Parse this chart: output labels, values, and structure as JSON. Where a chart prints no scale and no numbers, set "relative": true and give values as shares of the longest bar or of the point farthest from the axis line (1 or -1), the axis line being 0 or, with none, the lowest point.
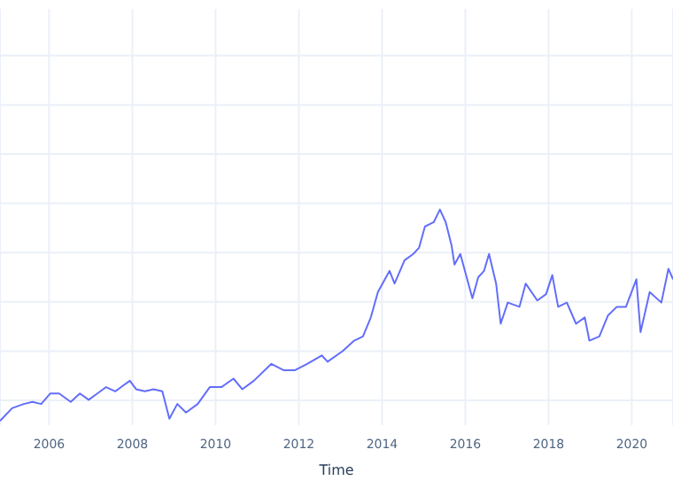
{
  "chart_data": {
    "type": "line",
    "xlabel": "Time",
    "relative": true,
    "grid": true,
    "xlim": [
      2004.82,
      2020.99
    ],
    "xticks": [
      2006,
      2008,
      2010,
      2012,
      2014,
      2016,
      2018,
      2020
    ],
    "tick_labels": "x",
    "marker": "none",
    "line_style": "solid",
    "series": [
      {
        "color": "#636efa",
        "x": [
          2004.82,
          2005.11,
          2005.39,
          2005.6,
          2005.81,
          2006.03,
          2006.24,
          2006.52,
          2006.74,
          2006.95,
          2007.16,
          2007.37,
          2007.59,
          2007.73,
          2007.94,
          2008.09,
          2008.3,
          2008.51,
          2008.72,
          2008.89,
          2009.08,
          2009.29,
          2009.57,
          2009.86,
          2010.14,
          2010.43,
          2010.64,
          2010.92,
          2011.34,
          2011.63,
          2011.91,
          2012.2,
          2012.55,
          2012.69,
          2013.05,
          2013.33,
          2013.54,
          2013.73,
          2013.9,
          2014.18,
          2014.3,
          2014.54,
          2014.75,
          2014.89,
          2015.03,
          2015.24,
          2015.39,
          2015.53,
          2015.67,
          2015.74,
          2015.88,
          2016.17,
          2016.31,
          2016.45,
          2016.57,
          2016.74,
          2016.85,
          2017.02,
          2017.3,
          2017.45,
          2017.73,
          2017.94,
          2018.09,
          2018.23,
          2018.44,
          2018.66,
          2018.87,
          2018.98,
          2019.22,
          2019.43,
          2019.64,
          2019.86,
          2020.11,
          2020.21,
          2020.43,
          2020.71,
          2020.88,
          2020.99
        ],
        "values": [
          0,
          0.06,
          0.08,
          0.09,
          0.08,
          0.13,
          0.13,
          0.09,
          0.13,
          0.1,
          0.13,
          0.16,
          0.14,
          0.16,
          0.19,
          0.15,
          0.14,
          0.15,
          0.14,
          0.01,
          0.08,
          0.04,
          0.08,
          0.16,
          0.16,
          0.2,
          0.15,
          0.19,
          0.27,
          0.24,
          0.24,
          0.27,
          0.31,
          0.28,
          0.33,
          0.38,
          0.4,
          0.49,
          0.61,
          0.71,
          0.65,
          0.76,
          0.79,
          0.82,
          0.92,
          0.94,
          1,
          0.94,
          0.83,
          0.74,
          0.79,
          0.58,
          0.68,
          0.71,
          0.79,
          0.65,
          0.46,
          0.56,
          0.54,
          0.65,
          0.57,
          0.6,
          0.69,
          0.54,
          0.56,
          0.46,
          0.49,
          0.38,
          0.4,
          0.5,
          0.54,
          0.54,
          0.67,
          0.42,
          0.61,
          0.56,
          0.72,
          0.67
        ]
      }
    ]
  }
}
